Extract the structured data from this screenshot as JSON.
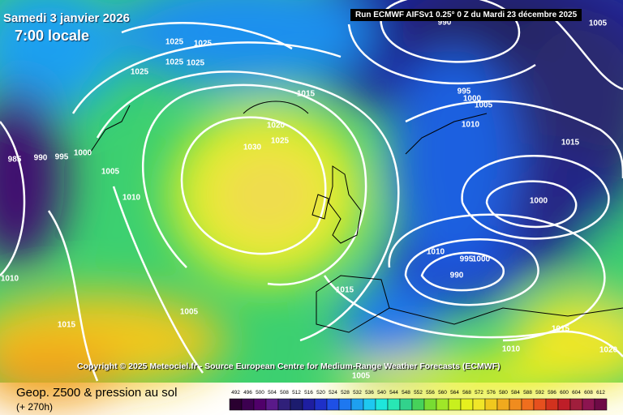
{
  "header": {
    "date": "Samedi 3 janvier 2026",
    "time": "7:00 locale",
    "run": "Run ECMWF AIFSv1 0.25° 0 Z du Mardi 23 décembre 2025"
  },
  "isobar_labels": [
    "1025",
    "1025",
    "1025",
    "1025",
    "1025",
    "1015",
    "1020",
    "1025",
    "1030",
    "985",
    "990",
    "995",
    "1000",
    "1005",
    "1010",
    "1010",
    "1005",
    "1015",
    "1015",
    "995",
    "1000",
    "1005",
    "1010",
    "1015",
    "1000",
    "1010",
    "990",
    "995",
    "1000",
    "1015",
    "1010",
    "1020",
    "1005",
    "990",
    "1005"
  ],
  "copyright": "Copyright © 2025 Meteociel.fr - Source European Centre for Medium-Range Weather Forecasts (ECMWF)",
  "footer": {
    "title": "Geop. Z500 & pression au sol",
    "lead": "(+ 270h)"
  },
  "legend": {
    "levels": [
      "492",
      "496",
      "500",
      "504",
      "508",
      "512",
      "516",
      "520",
      "524",
      "528",
      "532",
      "536",
      "540",
      "544",
      "548",
      "552",
      "556",
      "560",
      "564",
      "568",
      "572",
      "576",
      "580",
      "584",
      "588",
      "592",
      "596",
      "600",
      "604",
      "608",
      "612"
    ],
    "colors": [
      "#2a0030",
      "#3c0050",
      "#50006a",
      "#5a1a8a",
      "#30207a",
      "#1c1c6e",
      "#1e1ea0",
      "#1e30c8",
      "#1e50e6",
      "#1e78f0",
      "#1ea0f0",
      "#1ec8f0",
      "#1ee6dc",
      "#28e6b4",
      "#32d28c",
      "#46d25a",
      "#78dc32",
      "#a0e628",
      "#c8f01e",
      "#e6f01e",
      "#f0e628",
      "#f0c81e",
      "#f0aa1e",
      "#f08c1e",
      "#f06e1e",
      "#e6501e",
      "#d2321e",
      "#be1e28",
      "#a01e3c",
      "#8c1450",
      "#6e0a46"
    ]
  }
}
